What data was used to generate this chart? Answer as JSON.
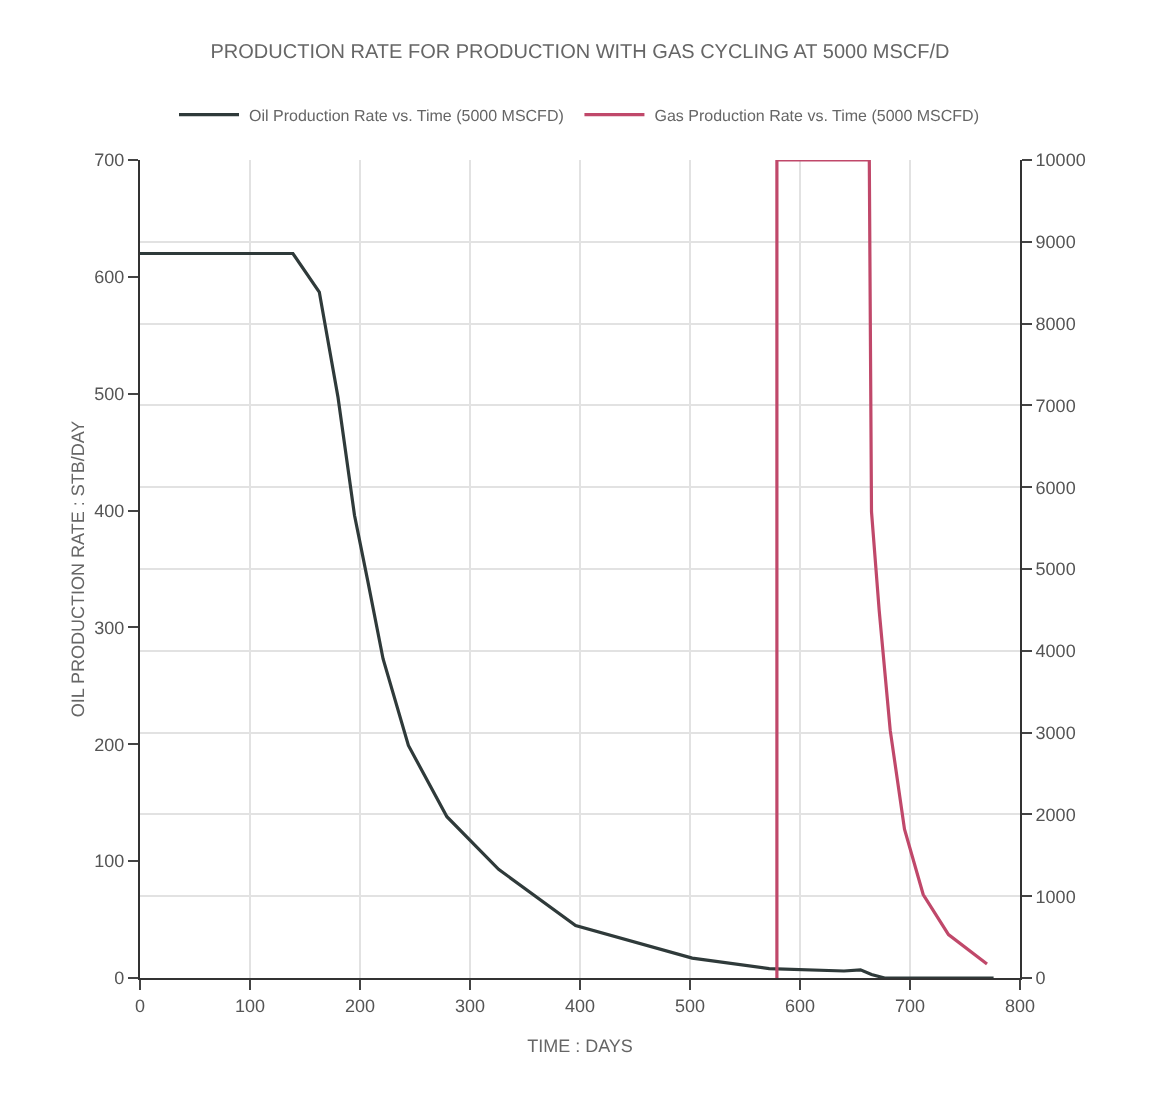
{
  "chart_data": {
    "type": "line",
    "title": "PRODUCTION RATE FOR PRODUCTION WITH GAS CYCLING AT 5000 MSCF/D",
    "xlabel": "TIME : DAYS",
    "ylabel": "OIL PRODUCTION RATE : STB/DAY",
    "series": [
      {
        "name": "Oil Production Rate vs. Time (5000 MSCFD)",
        "color": "#2f3a3a",
        "x": [
          0,
          139,
          163,
          180,
          195,
          207,
          221,
          244,
          279,
          326,
          396,
          502,
          572,
          640,
          655,
          665,
          677,
          720,
          776
        ],
        "values": [
          620,
          620,
          587,
          497,
          396,
          340,
          273,
          199,
          138,
          93,
          45,
          17,
          8,
          6,
          7,
          3,
          0,
          0,
          0
        ]
      },
      {
        "name": "Gas Production Rate vs. Time (5000 MSCFD)",
        "color": "#c0486a",
        "axis": "y2",
        "x": [
          579,
          579,
          663,
          665,
          672,
          682,
          695,
          712,
          735,
          770
        ],
        "values": [
          0,
          10000,
          10000,
          5700,
          4490,
          3030,
          1820,
          1020,
          530,
          170
        ]
      }
    ],
    "xlim": [
      0,
      800
    ],
    "xticks": [
      0,
      100,
      200,
      300,
      400,
      500,
      600,
      700,
      800
    ],
    "ylim": [
      0,
      700
    ],
    "yticks": [
      0,
      100,
      200,
      300,
      400,
      500,
      600,
      700
    ],
    "y2lim": [
      0,
      10000
    ],
    "y2ticks": [
      0,
      1000,
      2000,
      3000,
      4000,
      5000,
      6000,
      7000,
      8000,
      9000,
      10000
    ],
    "grid": true,
    "legend": "top",
    "marker": "none",
    "line_style": "solid"
  }
}
